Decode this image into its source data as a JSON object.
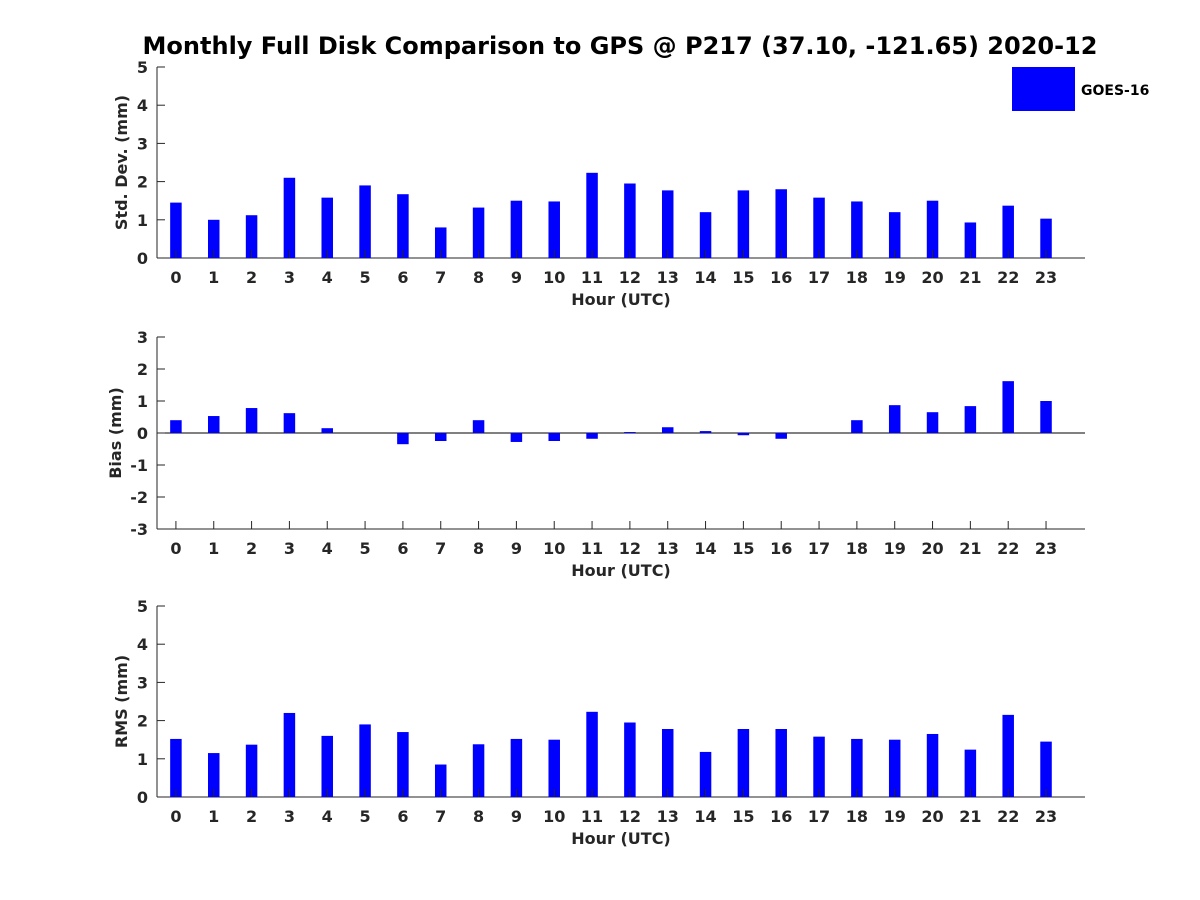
{
  "chart_data": {
    "title": "Monthly Full Disk Comparison to GPS @ P217 (37.10, -121.65) 2020-12",
    "legend": {
      "label": "GOES-16",
      "color": "#0000ff",
      "placement": "top-right"
    },
    "bar_color": "#0000ff",
    "categories": [
      "0",
      "1",
      "2",
      "3",
      "4",
      "5",
      "6",
      "7",
      "8",
      "9",
      "10",
      "11",
      "12",
      "13",
      "14",
      "15",
      "16",
      "17",
      "18",
      "19",
      "20",
      "21",
      "22",
      "23"
    ],
    "panels": [
      {
        "type": "bar",
        "ylabel": "Std. Dev. (mm)",
        "xlabel": "Hour (UTC)",
        "ylim": [
          0,
          5
        ],
        "yticks": [
          "0",
          "1",
          "2",
          "3",
          "4",
          "5"
        ],
        "values": [
          1.45,
          1.0,
          1.12,
          2.1,
          1.58,
          1.9,
          1.67,
          0.8,
          1.32,
          1.5,
          1.48,
          2.23,
          1.95,
          1.77,
          1.2,
          1.77,
          1.8,
          1.58,
          1.48,
          1.2,
          1.5,
          0.93,
          1.37,
          1.03
        ]
      },
      {
        "type": "bar",
        "ylabel": "Bias (mm)",
        "xlabel": "Hour (UTC)",
        "ylim": [
          -3,
          3
        ],
        "yticks": [
          "-3",
          "-2",
          "-1",
          "0",
          "1",
          "2",
          "3"
        ],
        "values": [
          0.4,
          0.53,
          0.78,
          0.62,
          0.15,
          0.0,
          -0.35,
          -0.25,
          0.4,
          -0.28,
          -0.25,
          -0.18,
          0.03,
          0.18,
          0.06,
          -0.07,
          -0.18,
          0.0,
          0.4,
          0.87,
          0.65,
          0.84,
          1.62,
          1.0
        ]
      },
      {
        "type": "bar",
        "ylabel": "RMS (mm)",
        "xlabel": "Hour (UTC)",
        "ylim": [
          0,
          5
        ],
        "yticks": [
          "0",
          "1",
          "2",
          "3",
          "4",
          "5"
        ],
        "values": [
          1.52,
          1.15,
          1.37,
          2.2,
          1.6,
          1.9,
          1.7,
          0.85,
          1.38,
          1.52,
          1.5,
          2.23,
          1.95,
          1.78,
          1.18,
          1.78,
          1.78,
          1.58,
          1.52,
          1.5,
          1.65,
          1.24,
          2.15,
          1.45
        ]
      }
    ]
  }
}
